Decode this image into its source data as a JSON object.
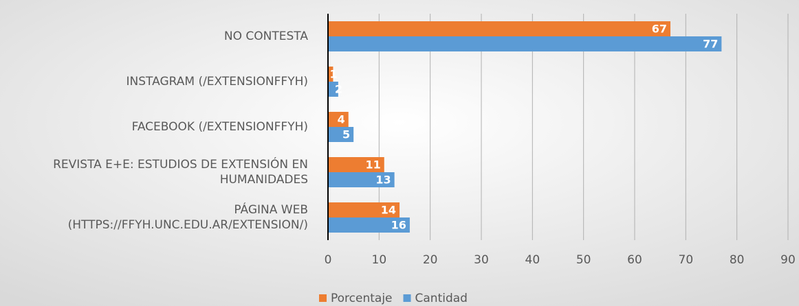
{
  "chart_data": {
    "type": "bar",
    "orientation": "horizontal",
    "categories": [
      "NO CONTESTA",
      "INSTAGRAM (/EXTENSIONFFYH)",
      "FACEBOOK (/EXTENSIONFFYH)",
      "REVISTA E+E: ESTUDIOS DE EXTENSIÓN EN\nHUMANIDADES",
      "PÁGINA WEB\n(HTTPS://FFYH.UNC.EDU.AR/EXTENSION/)"
    ],
    "series": [
      {
        "name": "Porcentaje",
        "color": "#ed7d31",
        "values": [
          67,
          1,
          4,
          11,
          14
        ]
      },
      {
        "name": "Cantidad",
        "color": "#5b9bd5",
        "values": [
          77,
          2,
          5,
          13,
          16
        ]
      }
    ],
    "xlim": [
      0,
      90
    ],
    "xticks": [
      0,
      10,
      20,
      30,
      40,
      50,
      60,
      70,
      80,
      90
    ],
    "grid": true,
    "legend": "bottom"
  }
}
